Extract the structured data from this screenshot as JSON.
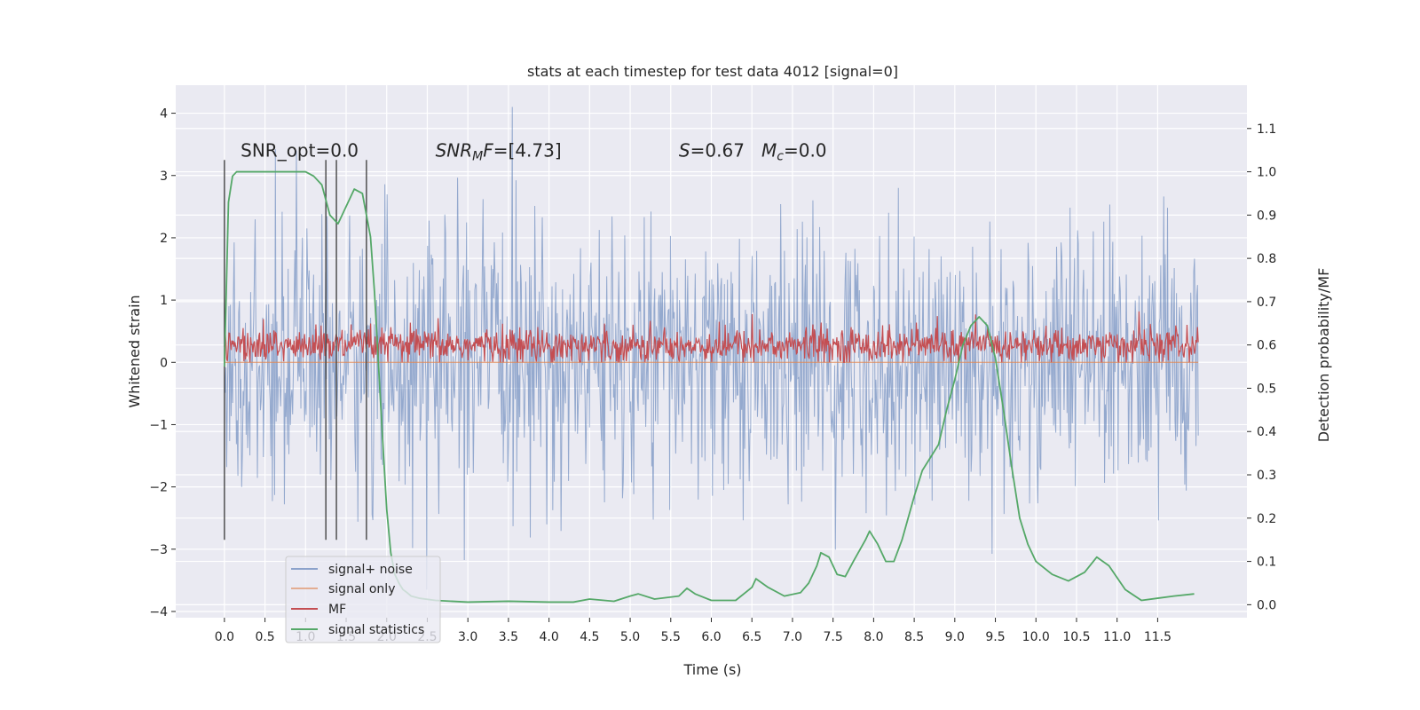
{
  "chart_data": {
    "type": "line",
    "title": "stats at each timestep for test data 4012 [signal=0]",
    "xlabel": "Time (s)",
    "ylabel": "Whitened strain",
    "y2label": "Detection probability/MF",
    "xlim": [
      -0.6,
      12.6
    ],
    "ylim": [
      -4.1,
      4.45
    ],
    "y2lim": [
      -0.03,
      1.2
    ],
    "x_ticks": [
      0.0,
      0.5,
      1.0,
      1.5,
      2.0,
      2.5,
      3.0,
      3.5,
      4.0,
      4.5,
      5.0,
      5.5,
      6.0,
      6.5,
      7.0,
      7.5,
      8.0,
      8.5,
      9.0,
      9.5,
      10.0,
      10.5,
      11.0,
      11.5
    ],
    "x_tick_labels": [
      "0.0",
      "0.5",
      "1.0",
      "1.5",
      "2.0",
      "2.5",
      "3.0",
      "3.5",
      "4.0",
      "4.5",
      "5.0",
      "5.5",
      "6.0",
      "6.5",
      "7.0",
      "7.5",
      "8.0",
      "8.5",
      "9.0",
      "9.5",
      "10.0",
      "10.5",
      "11.0",
      "11.5"
    ],
    "y_ticks": [
      -4,
      -3,
      -2,
      -1,
      0,
      1,
      2,
      3,
      4
    ],
    "y_tick_labels": [
      "−4",
      "−3",
      "−2",
      "−1",
      "0",
      "1",
      "2",
      "3",
      "4"
    ],
    "y2_ticks": [
      0.0,
      0.1,
      0.2,
      0.3,
      0.4,
      0.5,
      0.6,
      0.7,
      0.8,
      0.9,
      1.0,
      1.1
    ],
    "y2_tick_labels": [
      "0.0",
      "0.1",
      "0.2",
      "0.3",
      "0.4",
      "0.5",
      "0.6",
      "0.7",
      "0.8",
      "0.9",
      "1.0",
      "1.1"
    ],
    "grid": true,
    "legend_placement": "lower-left",
    "annotations": [
      {
        "text": "SNR_opt=0.0",
        "x": 0.2,
        "y": 3.3
      },
      {
        "text": "SNR_MF=[4.73]",
        "x": 2.6,
        "y": 3.3
      },
      {
        "text": "S=0.67   M_c=0.0",
        "x": 5.6,
        "y": 3.3
      }
    ],
    "vertical_markers": [
      0.0,
      1.25,
      1.38,
      1.75
    ],
    "vertical_marker_range": [
      -2.85,
      3.25
    ],
    "series": [
      {
        "name": "signal+ noise",
        "color": "#4c72b0",
        "axis": "left",
        "description": "noisy whitened strain",
        "x_range": [
          0.0,
          12.0
        ],
        "typical_band": [
          -1.4,
          1.4
        ],
        "extremes": [
          -3.7,
          4.1
        ]
      },
      {
        "name": "signal only",
        "color": "#dd8452",
        "axis": "left",
        "x": [
          0.0,
          12.0
        ],
        "y": [
          0.0,
          0.0
        ]
      },
      {
        "name": "MF",
        "color": "#c44e52",
        "axis": "left",
        "x_range": [
          0.0,
          12.0
        ],
        "typical_band": [
          0.05,
          0.55
        ],
        "extremes": [
          0.0,
          0.88
        ]
      },
      {
        "name": "signal statistics",
        "color": "#55a868",
        "axis": "right",
        "x": [
          0.0,
          0.05,
          0.1,
          0.15,
          0.2,
          0.3,
          0.5,
          0.8,
          1.0,
          1.1,
          1.2,
          1.3,
          1.4,
          1.5,
          1.6,
          1.7,
          1.8,
          1.85,
          1.9,
          1.95,
          2.0,
          2.05,
          2.1,
          2.15,
          2.2,
          2.25,
          2.3,
          2.4,
          2.6,
          3.0,
          3.5,
          4.0,
          4.3,
          4.5,
          4.8,
          5.0,
          5.1,
          5.3,
          5.6,
          5.7,
          5.8,
          6.0,
          6.3,
          6.5,
          6.55,
          6.7,
          6.9,
          7.1,
          7.2,
          7.3,
          7.35,
          7.45,
          7.55,
          7.65,
          7.75,
          7.9,
          7.95,
          8.05,
          8.15,
          8.25,
          8.35,
          8.5,
          8.6,
          8.7,
          8.8,
          8.9,
          9.0,
          9.1,
          9.2,
          9.3,
          9.4,
          9.5,
          9.6,
          9.7,
          9.8,
          9.9,
          10.0,
          10.2,
          10.4,
          10.6,
          10.75,
          10.9,
          11.1,
          11.3,
          11.5,
          11.7,
          11.95
        ],
        "y": [
          0.55,
          0.93,
          0.99,
          1.0,
          1.0,
          1.0,
          1.0,
          1.0,
          1.0,
          0.99,
          0.97,
          0.9,
          0.88,
          0.92,
          0.96,
          0.95,
          0.85,
          0.72,
          0.55,
          0.38,
          0.22,
          0.12,
          0.07,
          0.05,
          0.035,
          0.028,
          0.02,
          0.015,
          0.01,
          0.006,
          0.008,
          0.006,
          0.006,
          0.013,
          0.008,
          0.02,
          0.025,
          0.013,
          0.02,
          0.038,
          0.025,
          0.01,
          0.01,
          0.04,
          0.06,
          0.04,
          0.02,
          0.028,
          0.05,
          0.09,
          0.12,
          0.11,
          0.07,
          0.065,
          0.1,
          0.15,
          0.17,
          0.14,
          0.1,
          0.1,
          0.15,
          0.25,
          0.31,
          0.34,
          0.37,
          0.45,
          0.52,
          0.6,
          0.645,
          0.665,
          0.645,
          0.57,
          0.45,
          0.32,
          0.2,
          0.14,
          0.1,
          0.07,
          0.055,
          0.075,
          0.11,
          0.09,
          0.035,
          0.01,
          0.015,
          0.02,
          0.025
        ]
      }
    ],
    "legend": {
      "entries": [
        "signal+ noise",
        "signal only",
        "MF",
        "signal statistics"
      ]
    }
  }
}
